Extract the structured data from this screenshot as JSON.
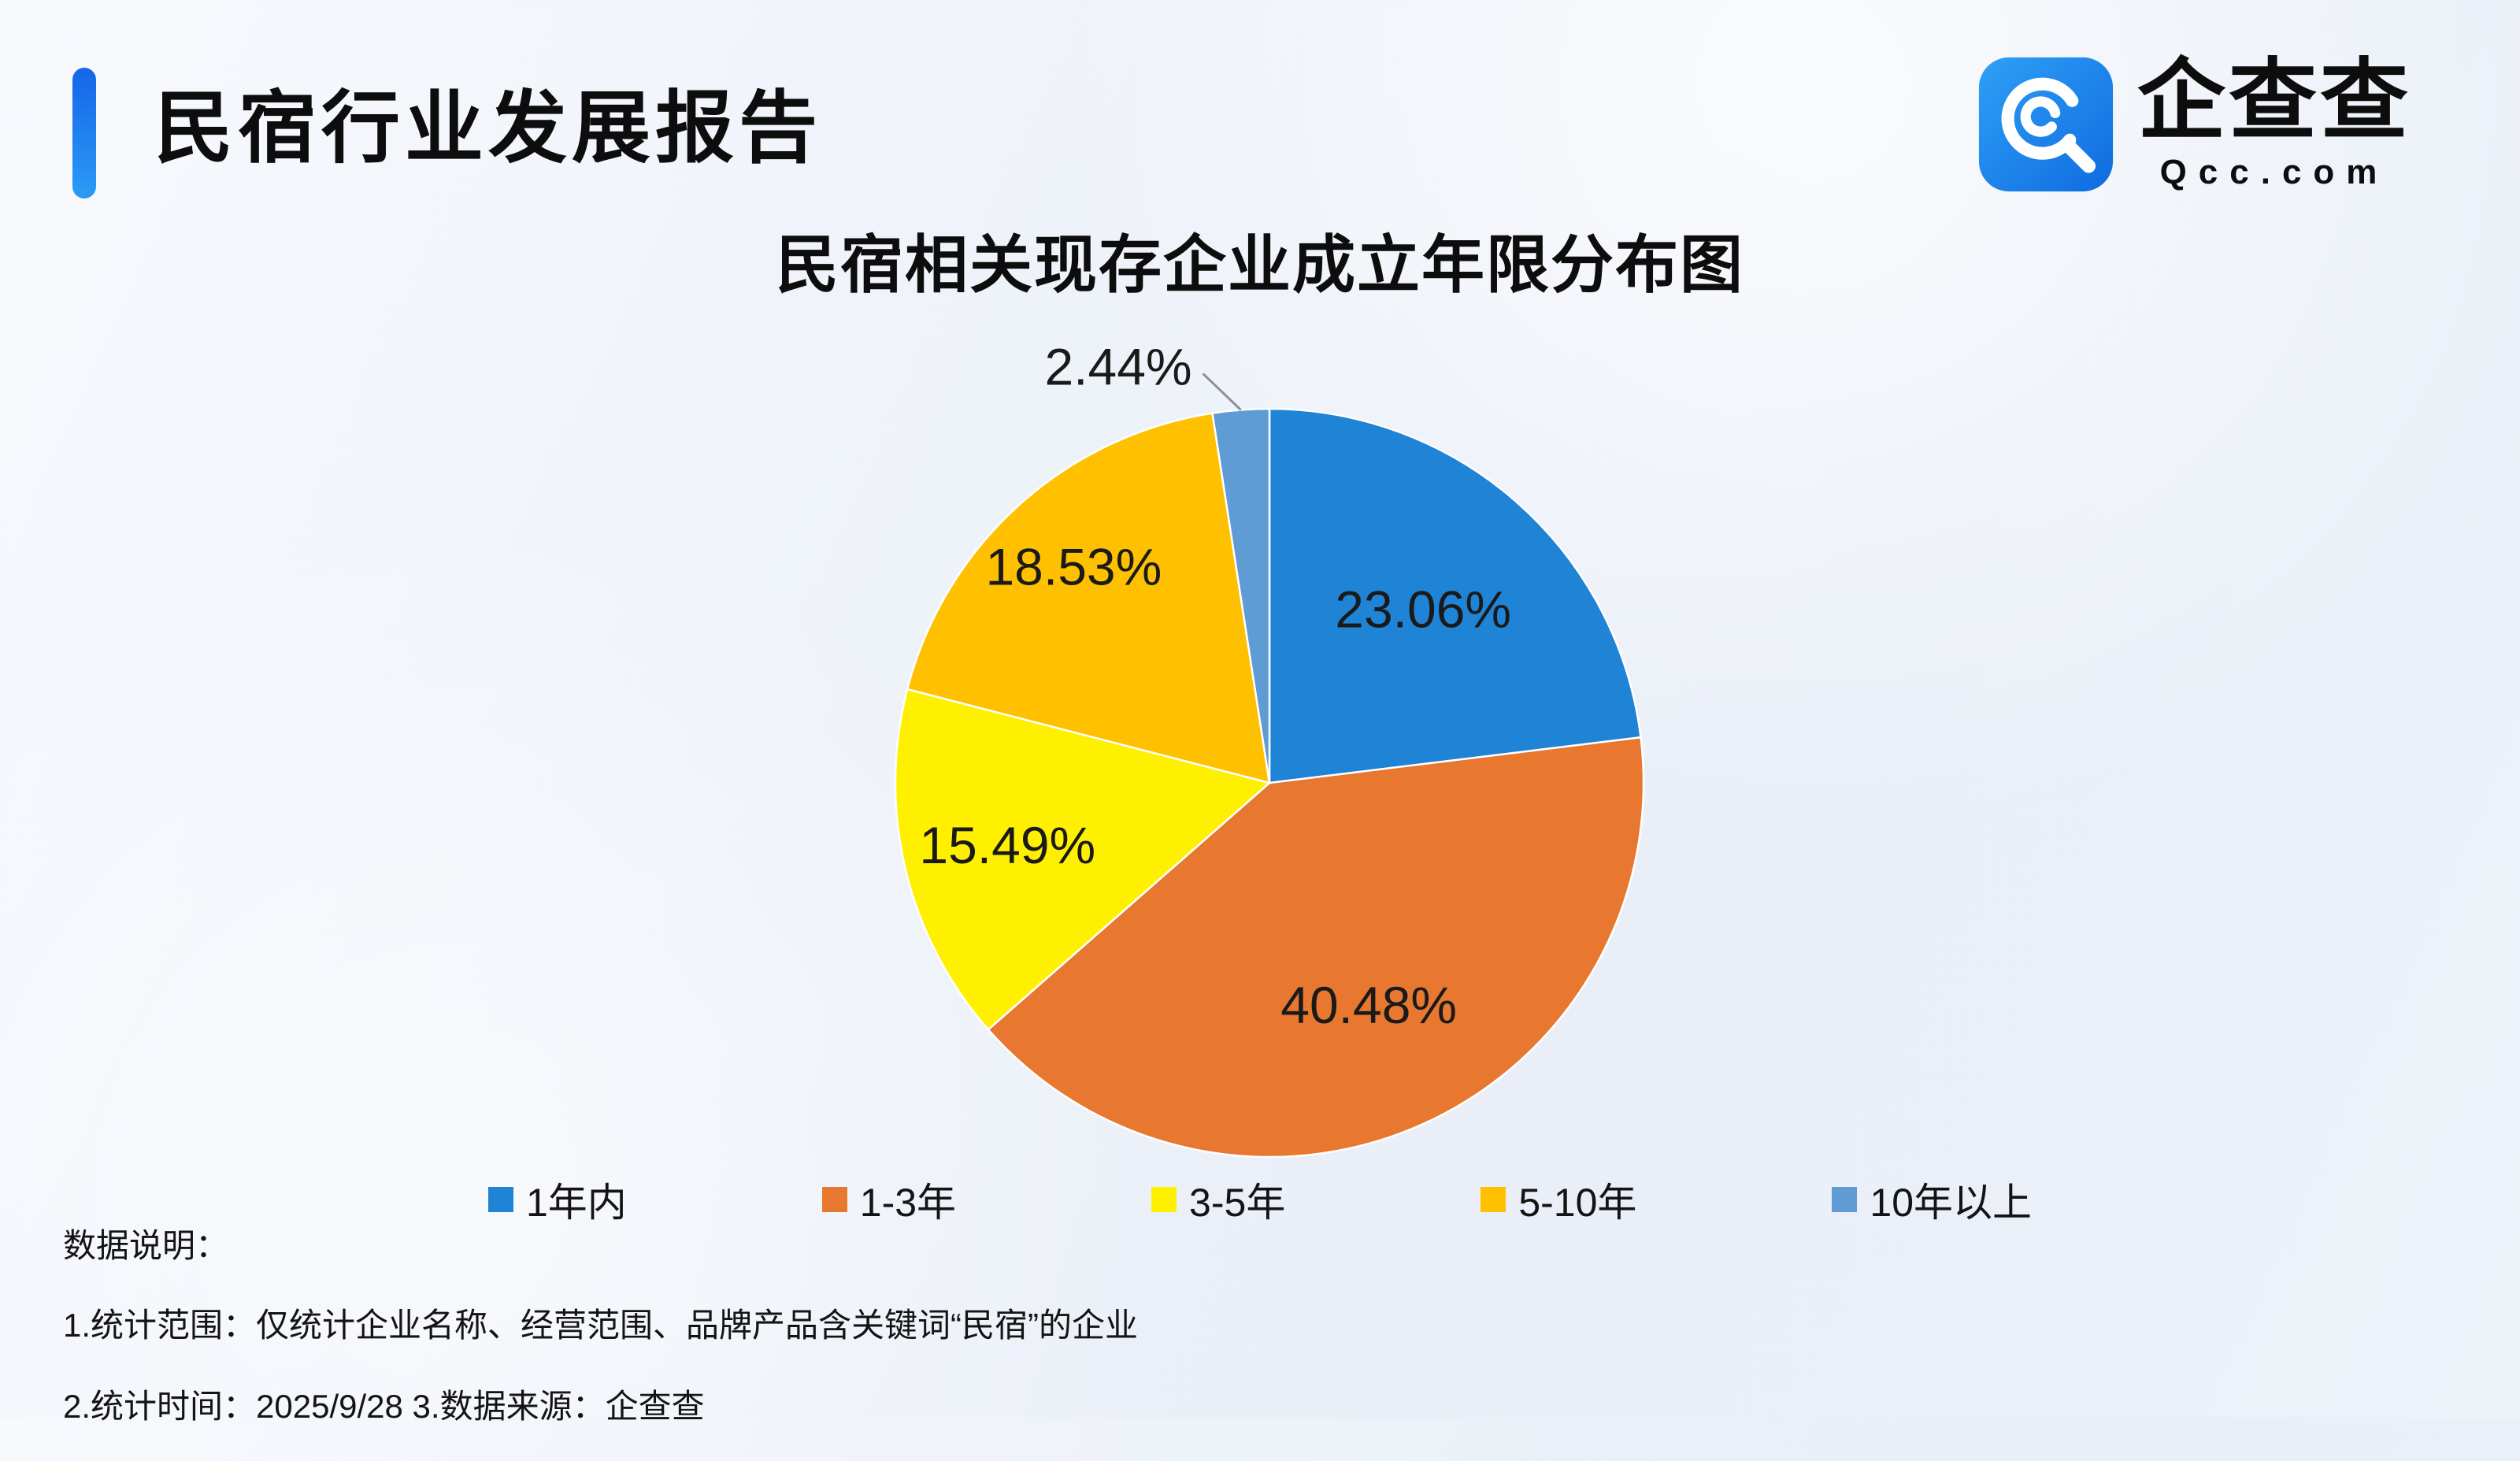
{
  "header": {
    "title": "民宿行业发展报告",
    "logo": {
      "name": "企查查",
      "domain": "Qcc.com"
    }
  },
  "chart_data": {
    "type": "pie",
    "title": "民宿相关现存企业成立年限分布图",
    "start_angle_deg": 0,
    "direction": "clockwise",
    "legend_position": "bottom",
    "label_r": [
      0.62,
      0.65,
      0.72,
      0.78,
      -1
    ],
    "series": [
      {
        "label": "1年内",
        "value": 23.06,
        "display": "23.06%",
        "color": "#1F83D6"
      },
      {
        "label": "1-3年",
        "value": 40.48,
        "display": "40.48%",
        "color": "#E8772F"
      },
      {
        "label": "3-5年",
        "value": 15.49,
        "display": "15.49%",
        "color": "#FFF000"
      },
      {
        "label": "5-10年",
        "value": 18.53,
        "display": "18.53%",
        "color": "#FFC000"
      },
      {
        "label": "10年以上",
        "value": 2.44,
        "display": "2.44%",
        "color": "#5F9BD5"
      }
    ]
  },
  "footer": {
    "heading": "数据说明：",
    "line1": "1.统计范围：仅统计企业名称、经营范围、品牌产品含关键词“民宿”的企业",
    "line2": "2.统计时间：2025/9/28  3.数据来源：企查查"
  }
}
